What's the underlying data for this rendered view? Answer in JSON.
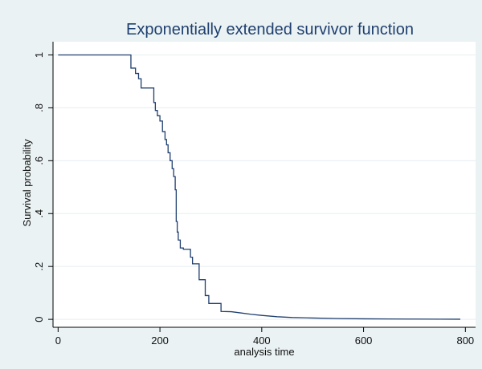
{
  "chart_data": {
    "type": "line",
    "title": "Exponentially extended survivor function",
    "xlabel": "analysis time",
    "ylabel": "Survival probability",
    "xlim": [
      -10,
      820
    ],
    "ylim": [
      -0.03,
      1.05
    ],
    "xticks": [
      0,
      200,
      400,
      600,
      800
    ],
    "yticks": [
      0,
      0.2,
      0.4,
      0.6,
      0.8,
      1
    ],
    "ytick_labels": [
      "0",
      ".2",
      ".4",
      ".6",
      ".8",
      "1"
    ],
    "grid": true,
    "legend": "none",
    "colors": {
      "background": "#eaf2f3",
      "plot_background": "#ffffff",
      "grid": "#e6eef0",
      "line": "#1f3f6f",
      "title": "#1f3f6f"
    },
    "series": [
      {
        "x": [
          0,
          143,
          143,
          152,
          152,
          158,
          158,
          163,
          163,
          188,
          188,
          191,
          191,
          195,
          195,
          200,
          200,
          205,
          205,
          210,
          210,
          213,
          213,
          216,
          216,
          220,
          220,
          224,
          224,
          227,
          227,
          230,
          230,
          232,
          232,
          234,
          234,
          236,
          236,
          240,
          240,
          246,
          246,
          260,
          260,
          264,
          264,
          277,
          277,
          289,
          289,
          296,
          296,
          320,
          320,
          340,
          360,
          380,
          400,
          430,
          460,
          500,
          550,
          600,
          650,
          700,
          750,
          790
        ],
        "y": [
          1,
          1,
          0.95,
          0.95,
          0.93,
          0.93,
          0.91,
          0.91,
          0.875,
          0.875,
          0.82,
          0.82,
          0.79,
          0.79,
          0.77,
          0.77,
          0.75,
          0.75,
          0.71,
          0.71,
          0.68,
          0.68,
          0.66,
          0.66,
          0.63,
          0.63,
          0.6,
          0.6,
          0.57,
          0.57,
          0.54,
          0.54,
          0.49,
          0.49,
          0.37,
          0.37,
          0.33,
          0.33,
          0.3,
          0.3,
          0.27,
          0.27,
          0.265,
          0.265,
          0.235,
          0.235,
          0.21,
          0.21,
          0.15,
          0.15,
          0.09,
          0.09,
          0.06,
          0.06,
          0.03,
          0.029,
          0.024,
          0.019,
          0.015,
          0.01,
          0.007,
          0.005,
          0.003,
          0.002,
          0.0015,
          0.001,
          0.0008,
          0.0005
        ]
      }
    ]
  }
}
